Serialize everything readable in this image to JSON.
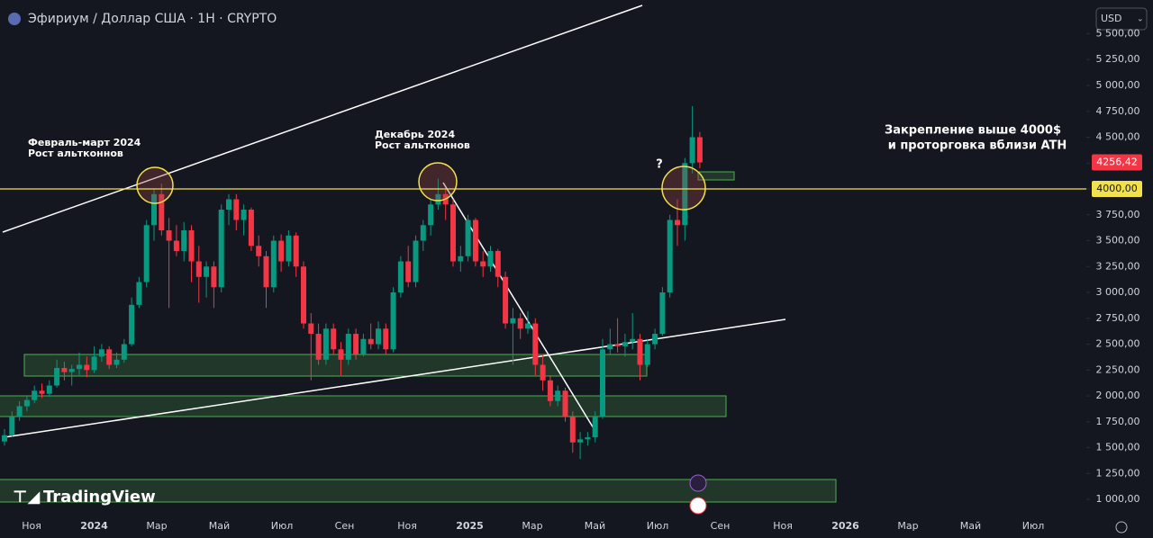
{
  "chart_data": {
    "type": "candlestick",
    "title": "Эфириум / Доллар США · 1Н · CRYPTO",
    "currency": "USD",
    "candles": [
      [
        1560,
        1680,
        1520,
        1620
      ],
      [
        1620,
        1850,
        1600,
        1800
      ],
      [
        1800,
        1950,
        1760,
        1900
      ],
      [
        1900,
        2000,
        1850,
        1960
      ],
      [
        1960,
        2100,
        1930,
        2050
      ],
      [
        2050,
        2120,
        1980,
        2020
      ],
      [
        2020,
        2150,
        1990,
        2100
      ],
      [
        2100,
        2350,
        2080,
        2270
      ],
      [
        2270,
        2330,
        2150,
        2230
      ],
      [
        2230,
        2300,
        2100,
        2260
      ],
      [
        2260,
        2420,
        2200,
        2300
      ],
      [
        2300,
        2380,
        2180,
        2250
      ],
      [
        2250,
        2480,
        2220,
        2380
      ],
      [
        2380,
        2500,
        2330,
        2450
      ],
      [
        2450,
        2480,
        2260,
        2300
      ],
      [
        2300,
        2420,
        2270,
        2350
      ],
      [
        2350,
        2550,
        2320,
        2500
      ],
      [
        2500,
        2950,
        2480,
        2880
      ],
      [
        2880,
        3150,
        2850,
        3100
      ],
      [
        3100,
        3700,
        3050,
        3650
      ],
      [
        3650,
        4000,
        3500,
        3950
      ],
      [
        3950,
        4050,
        3550,
        3600
      ],
      [
        3600,
        3720,
        2850,
        3500
      ],
      [
        3500,
        3650,
        3350,
        3400
      ],
      [
        3400,
        3680,
        3300,
        3600
      ],
      [
        3600,
        3650,
        3100,
        3300
      ],
      [
        3300,
        3450,
        2900,
        3150
      ],
      [
        3150,
        3300,
        2950,
        3250
      ],
      [
        3250,
        3300,
        2850,
        3050
      ],
      [
        3050,
        3850,
        3000,
        3800
      ],
      [
        3800,
        3950,
        3650,
        3900
      ],
      [
        3900,
        3950,
        3600,
        3700
      ],
      [
        3700,
        3850,
        3550,
        3800
      ],
      [
        3800,
        3820,
        3400,
        3450
      ],
      [
        3450,
        3550,
        3250,
        3350
      ],
      [
        3350,
        3400,
        2850,
        3050
      ],
      [
        3050,
        3550,
        3000,
        3500
      ],
      [
        3500,
        3560,
        3200,
        3300
      ],
      [
        3300,
        3600,
        3250,
        3550
      ],
      [
        3550,
        3580,
        3150,
        3250
      ],
      [
        3250,
        3300,
        2650,
        2700
      ],
      [
        2700,
        2800,
        2150,
        2600
      ],
      [
        2600,
        2700,
        2300,
        2350
      ],
      [
        2350,
        2700,
        2300,
        2650
      ],
      [
        2650,
        2700,
        2400,
        2450
      ],
      [
        2450,
        2520,
        2200,
        2350
      ],
      [
        2350,
        2650,
        2300,
        2600
      ],
      [
        2600,
        2650,
        2350,
        2400
      ],
      [
        2400,
        2600,
        2380,
        2550
      ],
      [
        2550,
        2700,
        2450,
        2500
      ],
      [
        2500,
        2720,
        2450,
        2650
      ],
      [
        2650,
        2700,
        2400,
        2450
      ],
      [
        2450,
        3050,
        2420,
        3000
      ],
      [
        3000,
        3350,
        2950,
        3300
      ],
      [
        3300,
        3450,
        3050,
        3100
      ],
      [
        3100,
        3550,
        3050,
        3500
      ],
      [
        3500,
        3700,
        3400,
        3650
      ],
      [
        3650,
        3900,
        3550,
        3850
      ],
      [
        3850,
        4100,
        3800,
        3950
      ],
      [
        3950,
        4000,
        3700,
        3850
      ],
      [
        3850,
        3900,
        3250,
        3300
      ],
      [
        3300,
        3450,
        3200,
        3350
      ],
      [
        3350,
        3750,
        3300,
        3700
      ],
      [
        3700,
        3720,
        3250,
        3300
      ],
      [
        3300,
        3400,
        3150,
        3250
      ],
      [
        3250,
        3450,
        3200,
        3400
      ],
      [
        3400,
        3420,
        3050,
        3150
      ],
      [
        3150,
        3200,
        2650,
        2700
      ],
      [
        2700,
        2850,
        2300,
        2750
      ],
      [
        2750,
        2800,
        2550,
        2650
      ],
      [
        2650,
        2820,
        2600,
        2700
      ],
      [
        2700,
        2750,
        2200,
        2300
      ],
      [
        2300,
        2400,
        2050,
        2150
      ],
      [
        2150,
        2200,
        1900,
        1950
      ],
      [
        1950,
        2100,
        1900,
        2050
      ],
      [
        2050,
        2080,
        1750,
        1800
      ],
      [
        1800,
        1850,
        1450,
        1550
      ],
      [
        1550,
        1650,
        1390,
        1580
      ],
      [
        1580,
        1650,
        1520,
        1600
      ],
      [
        1600,
        1850,
        1550,
        1800
      ],
      [
        1800,
        2550,
        1780,
        2450
      ],
      [
        2450,
        2650,
        2400,
        2500
      ],
      [
        2500,
        2750,
        2420,
        2480
      ],
      [
        2480,
        2600,
        2380,
        2520
      ],
      [
        2520,
        2800,
        2450,
        2550
      ],
      [
        2550,
        2600,
        2150,
        2300
      ],
      [
        2300,
        2550,
        2280,
        2500
      ],
      [
        2500,
        2650,
        2450,
        2600
      ],
      [
        2600,
        3050,
        2580,
        3000
      ],
      [
        3000,
        3750,
        2950,
        3700
      ],
      [
        3700,
        3900,
        3450,
        3650
      ],
      [
        3650,
        4300,
        3500,
        4250
      ],
      [
        4250,
        4800,
        4150,
        4500
      ],
      [
        4500,
        4550,
        4200,
        4256.42
      ]
    ],
    "up_color": "#089981",
    "down_color": "#f23645",
    "ylim": [
      870,
      5826
    ],
    "yticks": [
      {
        "value": 1000,
        "label": "1 000,00"
      },
      {
        "value": 1250,
        "label": "1 250,00"
      },
      {
        "value": 1500,
        "label": "1 500,00"
      },
      {
        "value": 1750,
        "label": "1 750,00"
      },
      {
        "value": 2000,
        "label": "2 000,00"
      },
      {
        "value": 2250,
        "label": "2 250,00"
      },
      {
        "value": 2500,
        "label": "2 500,00"
      },
      {
        "value": 2750,
        "label": "2 750,00"
      },
      {
        "value": 3000,
        "label": "3 000,00"
      },
      {
        "value": 3250,
        "label": "3 250,00"
      },
      {
        "value": 3500,
        "label": "3 500,00"
      },
      {
        "value": 3750,
        "label": "3 750,00"
      },
      {
        "value": 4000,
        "label": "4 000,00"
      },
      {
        "value": 4250,
        "label": "4 250,00"
      },
      {
        "value": 4500,
        "label": "4 500,00"
      },
      {
        "value": 4750,
        "label": "4 750,00"
      },
      {
        "value": 5000,
        "label": "5 000,00"
      },
      {
        "value": 5250,
        "label": "5 250,00"
      },
      {
        "value": 5500,
        "label": "5 500,00"
      }
    ],
    "xticks": [
      "Ноя",
      "2024",
      "Мар",
      "Май",
      "Июл",
      "Сен",
      "Ноя",
      "2025",
      "Мар",
      "Май",
      "Июл",
      "Сен",
      "Ноя",
      "2026",
      "Мар",
      "Май",
      "Июл"
    ],
    "last_price": {
      "value": 4256.42,
      "label": "4256,42"
    },
    "level": {
      "value": 4000,
      "label": "4000,00"
    },
    "annotations": [
      {
        "lines": [
          "Февраль-март 2024",
          "Рост альтконнов"
        ]
      },
      {
        "lines": [
          "Декабрь 2024",
          "Рост альтконнов"
        ]
      },
      {
        "lines": [
          "Закрепление выше 4000$",
          "и проторговка вблизи ATH"
        ]
      },
      {
        "lines": [
          "?"
        ]
      }
    ],
    "logo": "TradingView"
  }
}
